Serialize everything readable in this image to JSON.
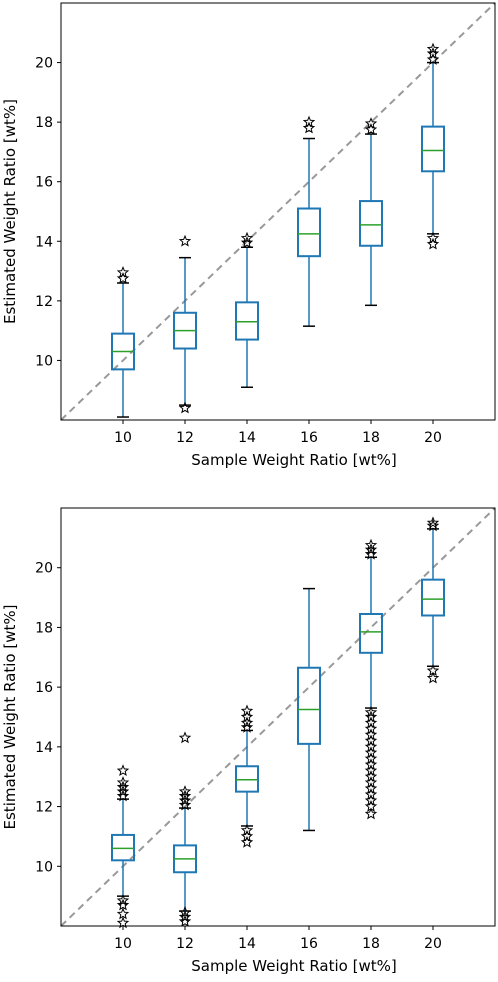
{
  "colors": {
    "box": "#1f77b4",
    "median": "#2ca02c",
    "diagonal": "#999999",
    "flier": "#000000"
  },
  "chart_data": [
    {
      "type": "boxplot",
      "title": "",
      "xlabel": "Sample Weight Ratio [wt%]",
      "ylabel": "Estimated Weight Ratio [wt%]",
      "x_ticks": [
        "10",
        "12",
        "14",
        "16",
        "18",
        "20"
      ],
      "y_ticks": [
        "10",
        "12",
        "14",
        "16",
        "18",
        "20"
      ],
      "xlim": [
        8,
        22
      ],
      "ylim": [
        8,
        22
      ],
      "reference_line": "y = x",
      "grid": false,
      "boxes": [
        {
          "x": 10,
          "min": 8.1,
          "q1": 9.7,
          "median": 10.3,
          "q3": 10.9,
          "max": 12.6,
          "fliers": [
            12.75,
            12.95
          ]
        },
        {
          "x": 12,
          "min": 8.5,
          "q1": 10.4,
          "median": 11.0,
          "q3": 11.6,
          "max": 13.45,
          "fliers": [
            8.4,
            14.0
          ]
        },
        {
          "x": 14,
          "min": 9.1,
          "q1": 10.7,
          "median": 11.3,
          "q3": 11.95,
          "max": 13.8,
          "fliers": [
            13.95,
            14.1
          ]
        },
        {
          "x": 16,
          "min": 11.15,
          "q1": 13.5,
          "median": 14.25,
          "q3": 15.1,
          "max": 17.45,
          "fliers": [
            17.8,
            18.0
          ]
        },
        {
          "x": 18,
          "min": 11.85,
          "q1": 13.85,
          "median": 14.55,
          "q3": 15.35,
          "max": 17.6,
          "fliers": [
            17.75,
            17.95
          ]
        },
        {
          "x": 20,
          "min": 14.25,
          "q1": 16.35,
          "median": 17.05,
          "q3": 17.85,
          "max": 20.0,
          "fliers": [
            13.9,
            14.1,
            20.1,
            20.3,
            20.45
          ]
        }
      ]
    },
    {
      "type": "boxplot",
      "title": "",
      "xlabel": "Sample Weight Ratio [wt%]",
      "ylabel": "Estimated Weight Ratio [wt%]",
      "x_ticks": [
        "10",
        "12",
        "14",
        "16",
        "18",
        "20"
      ],
      "y_ticks": [
        "10",
        "12",
        "14",
        "16",
        "18",
        "20"
      ],
      "xlim": [
        8,
        22
      ],
      "ylim": [
        8,
        22
      ],
      "reference_line": "y = x",
      "grid": false,
      "boxes": [
        {
          "x": 10,
          "min": 9.0,
          "q1": 10.2,
          "median": 10.6,
          "q3": 11.05,
          "max": 12.25,
          "fliers": [
            8.1,
            8.4,
            8.7,
            8.85,
            12.35,
            12.5,
            12.65,
            12.8,
            13.2
          ]
        },
        {
          "x": 12,
          "min": 8.5,
          "q1": 9.8,
          "median": 10.25,
          "q3": 10.7,
          "max": 11.95,
          "fliers": [
            8.15,
            8.3,
            8.45,
            12.05,
            12.2,
            12.35,
            12.5,
            14.3
          ]
        },
        {
          "x": 14,
          "min": 11.35,
          "q1": 12.5,
          "median": 12.9,
          "q3": 13.35,
          "max": 14.55,
          "fliers": [
            10.8,
            11.0,
            11.2,
            14.65,
            14.8,
            15.0,
            15.2
          ]
        },
        {
          "x": 16,
          "min": 11.2,
          "q1": 14.1,
          "median": 15.25,
          "q3": 16.65,
          "max": 19.3,
          "fliers": []
        },
        {
          "x": 18,
          "min": 15.3,
          "q1": 17.15,
          "median": 17.85,
          "q3": 18.45,
          "max": 20.35,
          "fliers": [
            11.75,
            12.0,
            12.2,
            12.4,
            12.6,
            12.8,
            13.0,
            13.2,
            13.4,
            13.6,
            13.8,
            14.0,
            14.2,
            14.4,
            14.6,
            14.8,
            15.0,
            15.15,
            20.45,
            20.6,
            20.75
          ]
        },
        {
          "x": 20,
          "min": 16.7,
          "q1": 18.4,
          "median": 18.95,
          "q3": 19.6,
          "max": 21.3,
          "fliers": [
            16.3,
            16.55,
            21.4,
            21.5
          ]
        }
      ]
    }
  ]
}
